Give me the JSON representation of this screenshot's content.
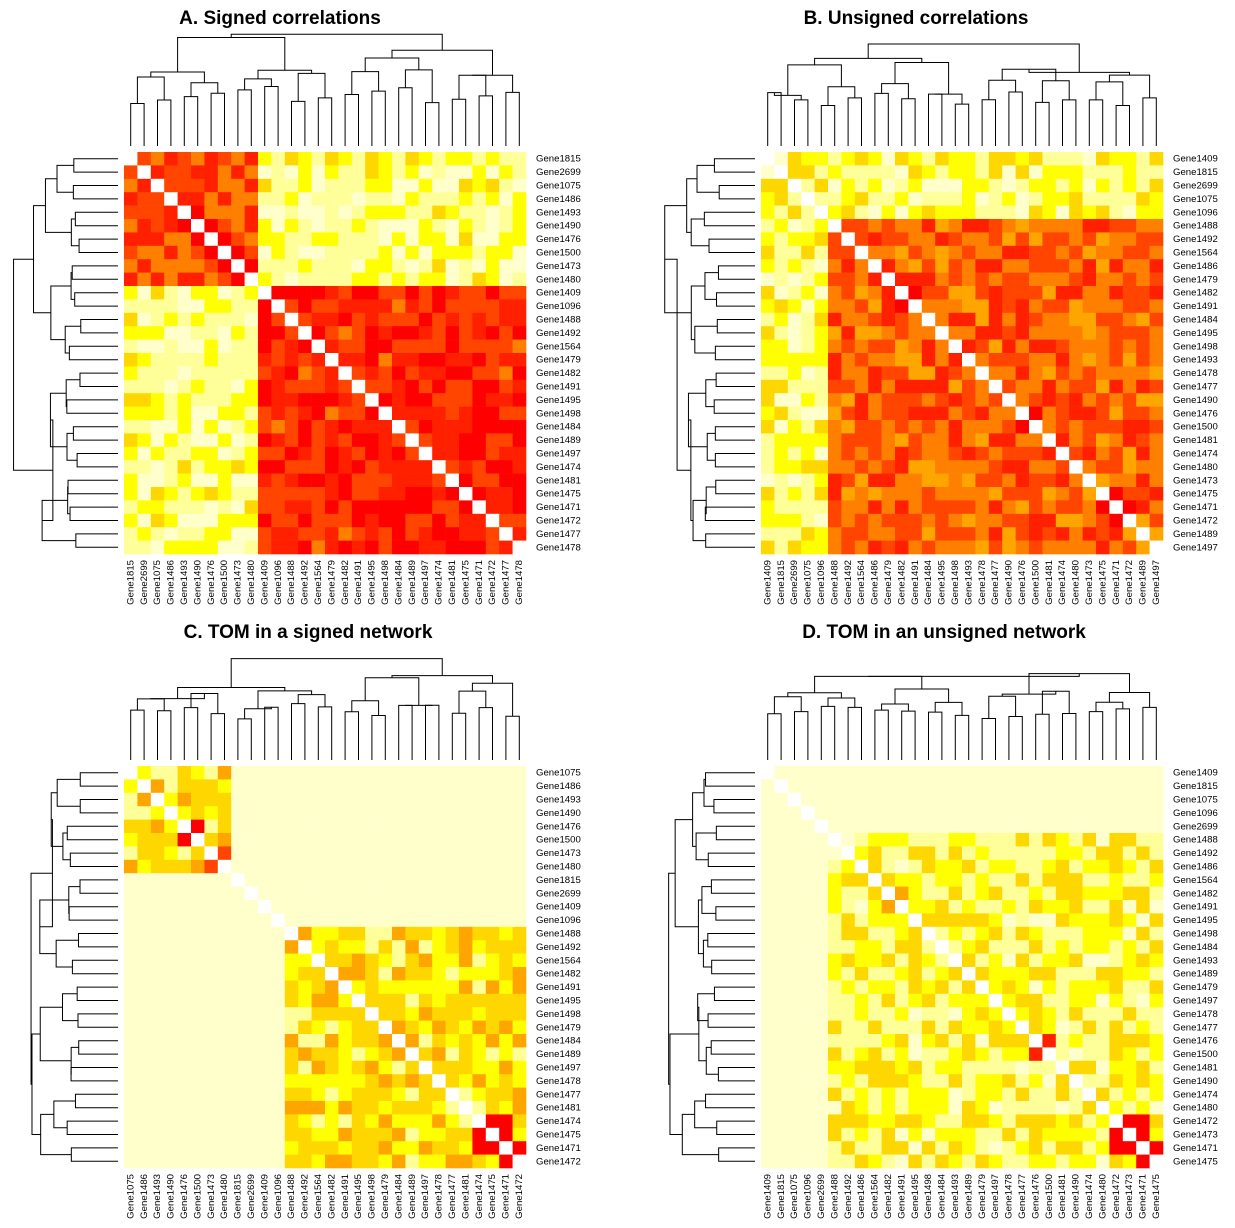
{
  "figure": {
    "title": ""
  },
  "color_scale": [
    "#FFFFCC",
    "#FFFF99",
    "#FFFF00",
    "#FFD700",
    "#FFA500",
    "#FF7F00",
    "#FF4500",
    "#FF2000",
    "#FF0000"
  ],
  "chart_data": [
    {
      "type": "heatmap",
      "title": "A. Signed correlations",
      "xlabel": "",
      "ylabel": "",
      "rows": [
        "Gene1815",
        "Gene2699",
        "Gene1075",
        "Gene1486",
        "Gene1493",
        "Gene1490",
        "Gene1476",
        "Gene1500",
        "Gene1473",
        "Gene1480",
        "Gene1409",
        "Gene1096",
        "Gene1488",
        "Gene1492",
        "Gene1564",
        "Gene1479",
        "Gene1482",
        "Gene1491",
        "Gene1495",
        "Gene1498",
        "Gene1484",
        "Gene1489",
        "Gene1497",
        "Gene1474",
        "Gene1481",
        "Gene1475",
        "Gene1471",
        "Gene1472",
        "Gene1477",
        "Gene1478"
      ],
      "cols": [
        "Gene1815",
        "Gene2699",
        "Gene1075",
        "Gene1486",
        "Gene1493",
        "Gene1490",
        "Gene1476",
        "Gene1500",
        "Gene1473",
        "Gene1480",
        "Gene1409",
        "Gene1096",
        "Gene1488",
        "Gene1492",
        "Gene1564",
        "Gene1479",
        "Gene1482",
        "Gene1491",
        "Gene1495",
        "Gene1498",
        "Gene1484",
        "Gene1489",
        "Gene1497",
        "Gene1474",
        "Gene1481",
        "Gene1475",
        "Gene1471",
        "Gene1472",
        "Gene1477",
        "Gene1478"
      ],
      "diagonal": "white",
      "value_range": [
        0,
        1
      ],
      "blocks": [
        {
          "rows": [
            0,
            9
          ],
          "cols": [
            0,
            9
          ],
          "value": 0.72
        },
        {
          "rows": [
            10,
            29
          ],
          "cols": [
            10,
            29
          ],
          "value": 0.82
        },
        {
          "rows": [
            0,
            9
          ],
          "cols": [
            10,
            29
          ],
          "value": 0.2
        },
        {
          "rows": [
            10,
            29
          ],
          "cols": [
            0,
            9
          ],
          "value": 0.2
        }
      ],
      "highlights": [
        [
          5,
          6,
          0.98
        ],
        [
          6,
          7,
          0.98
        ],
        [
          7,
          8,
          0.95
        ],
        [
          8,
          9,
          0.95
        ],
        [
          4,
          5,
          0.9
        ]
      ]
    },
    {
      "type": "heatmap",
      "title": "B. Unsigned correlations",
      "xlabel": "",
      "ylabel": "",
      "rows": [
        "Gene1409",
        "Gene1815",
        "Gene2699",
        "Gene1075",
        "Gene1096",
        "Gene1488",
        "Gene1492",
        "Gene1564",
        "Gene1486",
        "Gene1479",
        "Gene1482",
        "Gene1491",
        "Gene1484",
        "Gene1495",
        "Gene1498",
        "Gene1493",
        "Gene1478",
        "Gene1477",
        "Gene1490",
        "Gene1476",
        "Gene1500",
        "Gene1481",
        "Gene1474",
        "Gene1480",
        "Gene1473",
        "Gene1475",
        "Gene1471",
        "Gene1472",
        "Gene1489",
        "Gene1497"
      ],
      "cols": [
        "Gene1409",
        "Gene1815",
        "Gene2699",
        "Gene1075",
        "Gene1096",
        "Gene1488",
        "Gene1492",
        "Gene1564",
        "Gene1486",
        "Gene1479",
        "Gene1482",
        "Gene1491",
        "Gene1484",
        "Gene1495",
        "Gene1498",
        "Gene1493",
        "Gene1478",
        "Gene1477",
        "Gene1490",
        "Gene1476",
        "Gene1500",
        "Gene1481",
        "Gene1474",
        "Gene1480",
        "Gene1473",
        "Gene1475",
        "Gene1471",
        "Gene1472",
        "Gene1489",
        "Gene1497"
      ],
      "diagonal": "white",
      "value_range": [
        0,
        1
      ],
      "blocks": [
        {
          "rows": [
            0,
            4
          ],
          "cols": [
            0,
            4
          ],
          "value": 0.25
        },
        {
          "rows": [
            0,
            4
          ],
          "cols": [
            5,
            29
          ],
          "value": 0.22
        },
        {
          "rows": [
            5,
            29
          ],
          "cols": [
            0,
            4
          ],
          "value": 0.22
        },
        {
          "rows": [
            5,
            29
          ],
          "cols": [
            5,
            29
          ],
          "value": 0.68
        }
      ],
      "highlights": [
        [
          19,
          20,
          0.98
        ],
        [
          25,
          26,
          0.95
        ],
        [
          26,
          27,
          0.95
        ],
        [
          10,
          11,
          0.9
        ]
      ]
    },
    {
      "type": "heatmap",
      "title": "C. TOM in a signed network",
      "xlabel": "",
      "ylabel": "",
      "rows": [
        "Gene1075",
        "Gene1486",
        "Gene1493",
        "Gene1490",
        "Gene1476",
        "Gene1500",
        "Gene1473",
        "Gene1480",
        "Gene1815",
        "Gene2699",
        "Gene1409",
        "Gene1096",
        "Gene1488",
        "Gene1492",
        "Gene1564",
        "Gene1482",
        "Gene1491",
        "Gene1495",
        "Gene1498",
        "Gene1479",
        "Gene1484",
        "Gene1489",
        "Gene1497",
        "Gene1478",
        "Gene1477",
        "Gene1481",
        "Gene1474",
        "Gene1475",
        "Gene1471",
        "Gene1472"
      ],
      "cols": [
        "Gene1075",
        "Gene1486",
        "Gene1493",
        "Gene1490",
        "Gene1476",
        "Gene1500",
        "Gene1473",
        "Gene1480",
        "Gene1815",
        "Gene2699",
        "Gene1409",
        "Gene1096",
        "Gene1488",
        "Gene1492",
        "Gene1564",
        "Gene1482",
        "Gene1491",
        "Gene1495",
        "Gene1498",
        "Gene1479",
        "Gene1484",
        "Gene1489",
        "Gene1497",
        "Gene1478",
        "Gene1477",
        "Gene1481",
        "Gene1474",
        "Gene1475",
        "Gene1471",
        "Gene1472"
      ],
      "diagonal": "white",
      "value_range": [
        0,
        1
      ],
      "blocks": [
        {
          "rows": [
            0,
            29
          ],
          "cols": [
            0,
            29
          ],
          "value": 0.02
        },
        {
          "rows": [
            0,
            7
          ],
          "cols": [
            0,
            7
          ],
          "value": 0.32
        },
        {
          "rows": [
            12,
            29
          ],
          "cols": [
            12,
            29
          ],
          "value": 0.35
        }
      ],
      "highlights": [
        [
          4,
          5,
          1.0
        ],
        [
          6,
          7,
          0.75
        ],
        [
          26,
          27,
          0.9
        ],
        [
          27,
          28,
          0.98
        ],
        [
          28,
          29,
          0.98
        ],
        [
          26,
          28,
          0.9
        ]
      ]
    },
    {
      "type": "heatmap",
      "title": "D. TOM in an unsigned network",
      "xlabel": "",
      "ylabel": "",
      "rows": [
        "Gene1409",
        "Gene1815",
        "Gene1075",
        "Gene1096",
        "Gene2699",
        "Gene1488",
        "Gene1492",
        "Gene1486",
        "Gene1564",
        "Gene1482",
        "Gene1491",
        "Gene1495",
        "Gene1498",
        "Gene1484",
        "Gene1493",
        "Gene1489",
        "Gene1479",
        "Gene1497",
        "Gene1478",
        "Gene1477",
        "Gene1476",
        "Gene1500",
        "Gene1481",
        "Gene1490",
        "Gene1474",
        "Gene1480",
        "Gene1472",
        "Gene1473",
        "Gene1471",
        "Gene1475"
      ],
      "cols": [
        "Gene1409",
        "Gene1815",
        "Gene1075",
        "Gene1096",
        "Gene2699",
        "Gene1488",
        "Gene1492",
        "Gene1486",
        "Gene1564",
        "Gene1482",
        "Gene1491",
        "Gene1495",
        "Gene1498",
        "Gene1484",
        "Gene1493",
        "Gene1489",
        "Gene1479",
        "Gene1497",
        "Gene1478",
        "Gene1477",
        "Gene1476",
        "Gene1500",
        "Gene1481",
        "Gene1490",
        "Gene1474",
        "Gene1480",
        "Gene1472",
        "Gene1473",
        "Gene1471",
        "Gene1475"
      ],
      "diagonal": "white",
      "value_range": [
        0,
        1
      ],
      "blocks": [
        {
          "rows": [
            0,
            29
          ],
          "cols": [
            0,
            29
          ],
          "value": 0.03
        },
        {
          "rows": [
            5,
            29
          ],
          "cols": [
            5,
            29
          ],
          "value": 0.25
        }
      ],
      "highlights": [
        [
          20,
          21,
          0.8
        ],
        [
          9,
          10,
          0.55
        ],
        [
          26,
          27,
          0.98
        ],
        [
          27,
          28,
          0.98
        ],
        [
          28,
          29,
          0.98
        ],
        [
          26,
          28,
          0.95
        ]
      ]
    }
  ]
}
